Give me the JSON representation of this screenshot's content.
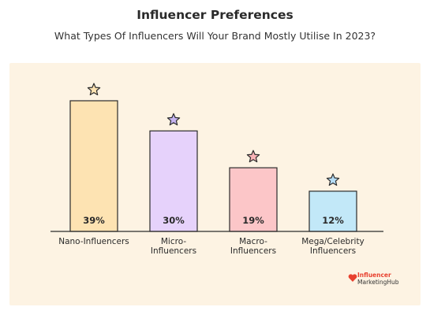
{
  "header": {
    "title": "Influencer Preferences",
    "subtitle": "What Types Of Influencers Will Your Brand Mostly Utilise In 2023?"
  },
  "logo": {
    "line1": "Influencer",
    "line2": "MarketingHub",
    "color": "#e8412f"
  },
  "chart_data": {
    "type": "bar",
    "title": "Influencer Preferences",
    "subtitle": "What Types Of Influencers Will Your Brand Mostly Utilise In 2023?",
    "categories": [
      "Nano-Influencers",
      "Micro-\nInfluencers",
      "Macro-\nInfluencers",
      "Mega/Celebrity\nInfluencers"
    ],
    "values": [
      39,
      30,
      19,
      12
    ],
    "value_labels": [
      "39%",
      "30%",
      "19%",
      "12%"
    ],
    "unit": "%",
    "ylim": [
      0,
      45
    ],
    "grid": false,
    "legend": "none",
    "bar_colors": [
      "#fde3b2",
      "#e6d2fb",
      "#fcc6c8",
      "#c2e8f8"
    ],
    "star_colors": [
      "#fde3b2",
      "#c5b3f0",
      "#f9b3b6",
      "#b5dcf5"
    ],
    "background": "#fdf3e3"
  }
}
